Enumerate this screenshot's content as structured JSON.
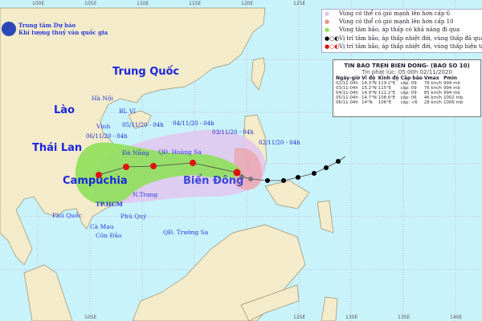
{
  "organization": {
    "line1": "Trung tâm Dự báo",
    "line2": "Khí tượng thuỷ văn quốc gia"
  },
  "longitude_ticks": [
    "100E",
    "105E",
    "110E",
    "115E",
    "120E",
    "125E",
    "130E",
    "135E",
    "140E"
  ],
  "legend": [
    {
      "icon": "pink-circle",
      "text": "Vùng có thể có gió mạnh lên hơn cấp 6",
      "color": "#e3c4ee"
    },
    {
      "icon": "red-circle",
      "text": "Vùng có thể có gió mạnh lên hơn cấp 10",
      "color": "#ee8a8a"
    },
    {
      "icon": "green-circle",
      "text": "Vùng tâm bão, áp thấp có khả năng đi qua",
      "color": "#8ee05a"
    },
    {
      "icon": "black-storm-symbols",
      "text": "Vị trí tâm bão, áp thấp nhiệt đới, vùng thấp đã qua",
      "color": "#000000"
    },
    {
      "icon": "red-storm-symbols",
      "text": "Vị trí tâm bão, áp thấp nhiệt đới, vùng thấp hiện tại và dự báo",
      "color": "#e01010"
    }
  ],
  "bulletin": {
    "title": "TIN BAO TREN BIEN DONG- (BAO SO 10)",
    "issued": "Tin phát lúc: 05:00h 02/11/2020",
    "headers": [
      "Ngày-giờ",
      "Vĩ độ",
      "Kinh độ",
      "Cấp bão",
      "Vmax",
      "Pmin"
    ],
    "rows": [
      [
        "02/11-04h",
        "14.3°N",
        "119.2°E",
        "cấp: 09",
        "76 km/h",
        "994 mb"
      ],
      [
        "03/11-04h",
        "15.2°N",
        "115°E",
        "cấp: 09",
        "76 km/h",
        "994 mb"
      ],
      [
        "04/11-04h",
        "14.9°N",
        "111.2°E",
        "cấp: 09",
        "85 km/h",
        "994 mb"
      ],
      [
        "05/11-04h",
        "14.7°N",
        "108.6°E",
        "cấp: 06",
        "46 km/h",
        "1002 mb"
      ],
      [
        "06/11-04h",
        "14°N",
        "106°E",
        "cấp: <6",
        "28 km/h",
        "1006 mb"
      ]
    ]
  },
  "countries": [
    "Trung Quốc",
    "Lào",
    "Thái Lan",
    "Campuchia",
    "Biển Đông"
  ],
  "places": [
    "Hà Nội",
    "BL Vĩ",
    "Vinh",
    "Đà Nẵng",
    "QĐ. Hoàng Sa",
    "N.Trang",
    "TP.HCM",
    "Phú Quốc",
    "Phú Quý",
    "Cà Mau",
    "Côn Đảo",
    "QĐ. Trường Sa"
  ],
  "forecast_labels": [
    "06/11/20 - 04h",
    "05/11/20 - 04h",
    "04/11/20 - 04h",
    "03/11/20 - 04h",
    "02/11/20 - 04h"
  ],
  "colors": {
    "sea": "#c9f3fb",
    "land": "#f3ebc9",
    "cone_level6": "#e3c4ee",
    "cone_level10": "#ee9a9a",
    "track_zone": "#8ee05a",
    "current": "#e01010",
    "past": "#000000"
  }
}
